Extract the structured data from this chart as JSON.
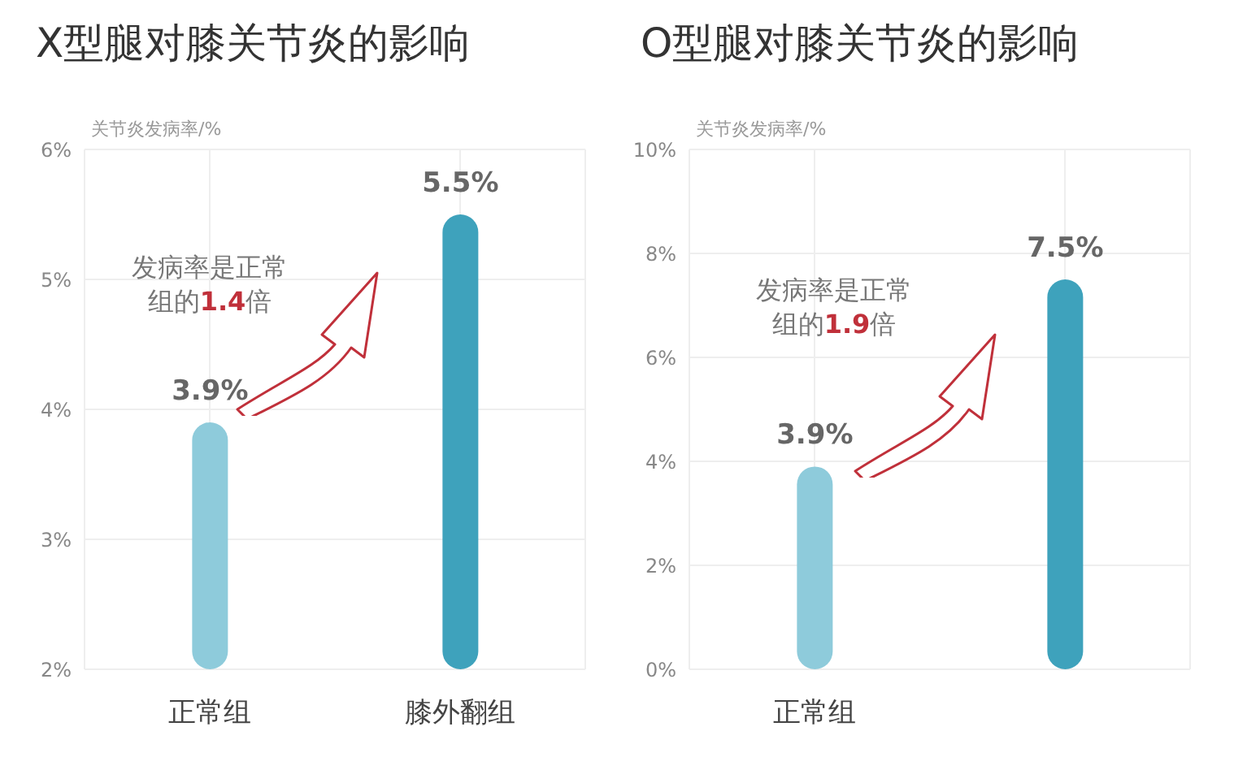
{
  "chart_data": [
    {
      "type": "bar",
      "title": "X型腿对膝关节炎的影响",
      "ylabel": "关节炎发病率/%",
      "categories": [
        "正常组",
        "膝外翻组"
      ],
      "values": [
        3.9,
        5.5
      ],
      "colors": [
        "#8ecbdb",
        "#3ea2bc"
      ],
      "value_labels": [
        "3.9%",
        "5.5%"
      ],
      "ylim": [
        2,
        6
      ],
      "yticks": [
        {
          "value": 2,
          "label": "2%"
        },
        {
          "value": 3,
          "label": "3%"
        },
        {
          "value": 4,
          "label": "4%"
        },
        {
          "value": 5,
          "label": "5%"
        },
        {
          "value": 6,
          "label": "6%"
        }
      ],
      "grid": true,
      "annotations": [
        "发病率是正常组的1.4倍"
      ]
    },
    {
      "type": "bar",
      "title": "O型腿对膝关节炎的影响",
      "ylabel": "关节炎发病率/%",
      "categories": [
        "正常组",
        null
      ],
      "values": [
        3.9,
        7.5
      ],
      "colors": [
        "#8ecbdb",
        "#3ea2bc"
      ],
      "value_labels": [
        "3.9%",
        "7.5%"
      ],
      "ylim": [
        0,
        10
      ],
      "yticks": [
        {
          "value": 0,
          "label": "0%"
        },
        {
          "value": 2,
          "label": "2%"
        },
        {
          "value": 4,
          "label": "4%"
        },
        {
          "value": 6,
          "label": "6%"
        },
        {
          "value": 8,
          "label": "8%"
        },
        {
          "value": 10,
          "label": "10%"
        }
      ],
      "grid": true,
      "annotations": [
        "发病率是正常组的1.9倍"
      ]
    }
  ]
}
